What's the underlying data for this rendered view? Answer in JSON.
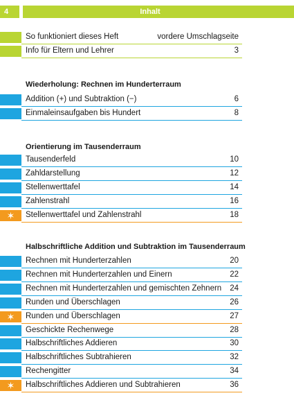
{
  "header": {
    "page_number": "4",
    "title": "Inhalt"
  },
  "sections": [
    {
      "title": "",
      "items": [
        {
          "label": "So funktioniert dieses Heft",
          "page": "vordere Umschlagseite",
          "color": "green",
          "icon": ""
        },
        {
          "label": "Info für Eltern und Lehrer",
          "page": "3",
          "color": "green",
          "icon": ""
        }
      ]
    },
    {
      "title": "Wiederholung: Rechnen im Hunderterraum",
      "items": [
        {
          "label": "Addition (+) und Subtraktion (−)",
          "page": "6",
          "color": "blue",
          "icon": ""
        },
        {
          "label": "Einmaleinsaufgaben bis Hundert",
          "page": "8",
          "color": "blue",
          "icon": ""
        }
      ]
    },
    {
      "title": "Orientierung im Tausenderraum",
      "items": [
        {
          "label": "Tausenderfeld",
          "page": "10",
          "color": "blue",
          "icon": ""
        },
        {
          "label": "Zahldarstellung",
          "page": "12",
          "color": "blue",
          "icon": ""
        },
        {
          "label": "Stellenwerttafel",
          "page": "14",
          "color": "blue",
          "icon": ""
        },
        {
          "label": "Zahlenstrahl",
          "page": "16",
          "color": "blue",
          "icon": ""
        },
        {
          "label": "Stellenwerttafel und Zahlenstrahl",
          "page": "18",
          "color": "orange",
          "icon": "star-icon"
        }
      ]
    },
    {
      "title": "Halbschriftliche Addition und Subtraktion im Tausenderraum",
      "items": [
        {
          "label": "Rechnen mit Hunderterzahlen",
          "page": "20",
          "color": "blue",
          "icon": ""
        },
        {
          "label": "Rechnen mit Hunderterzahlen und Einern",
          "page": "22",
          "color": "blue",
          "icon": ""
        },
        {
          "label": "Rechnen mit Hunderterzahlen und gemischten Zehnern",
          "page": "24",
          "color": "blue",
          "icon": ""
        },
        {
          "label": "Runden und Überschlagen",
          "page": "26",
          "color": "blue",
          "icon": ""
        },
        {
          "label": "Runden und Überschlagen",
          "page": "27",
          "color": "orange",
          "icon": "star-icon"
        },
        {
          "label": "Geschickte Rechenwege",
          "page": "28",
          "color": "blue",
          "icon": ""
        },
        {
          "label": "Halbschriftliches Addieren",
          "page": "30",
          "color": "blue",
          "icon": ""
        },
        {
          "label": "Halbschriftliches Subtrahieren",
          "page": "32",
          "color": "blue",
          "icon": ""
        },
        {
          "label": "Rechengitter",
          "page": "34",
          "color": "blue",
          "icon": ""
        },
        {
          "label": "Halbschriftliches Addieren und Subtrahieren",
          "page": "36",
          "color": "orange",
          "icon": "star-icon"
        }
      ]
    }
  ]
}
